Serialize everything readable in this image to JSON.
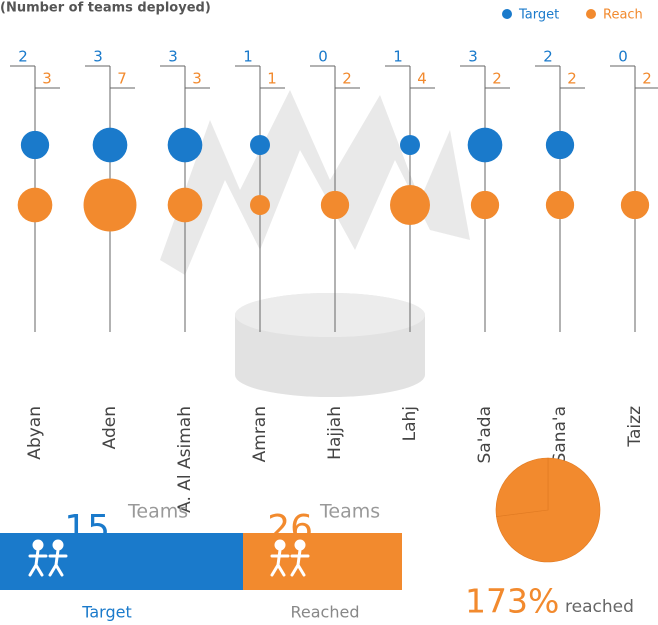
{
  "chart_data": {
    "type": "bubble",
    "subtitle": "(Number of teams deployed)",
    "categories": [
      "Abyan",
      "Aden",
      "A. Al Asimah",
      "Amran",
      "Hajjah",
      "Lahj",
      "Sa'ada",
      "Sana'a",
      "Taizz"
    ],
    "series": [
      {
        "name": "Target",
        "color": "#1a7acb",
        "values": [
          2,
          3,
          3,
          1,
          0,
          1,
          3,
          2,
          0
        ]
      },
      {
        "name": "Reach",
        "color": "#f28a2e",
        "values": [
          3,
          7,
          3,
          1,
          2,
          4,
          2,
          2,
          2
        ]
      }
    ]
  },
  "summary": {
    "target": {
      "value": 15,
      "unit": "Teams",
      "label": "Target"
    },
    "reached": {
      "value": 26,
      "unit": "Teams",
      "label": "Reached"
    },
    "percent": {
      "type": "pie",
      "value": 173,
      "value_label": "173%",
      "text": "reached"
    }
  }
}
